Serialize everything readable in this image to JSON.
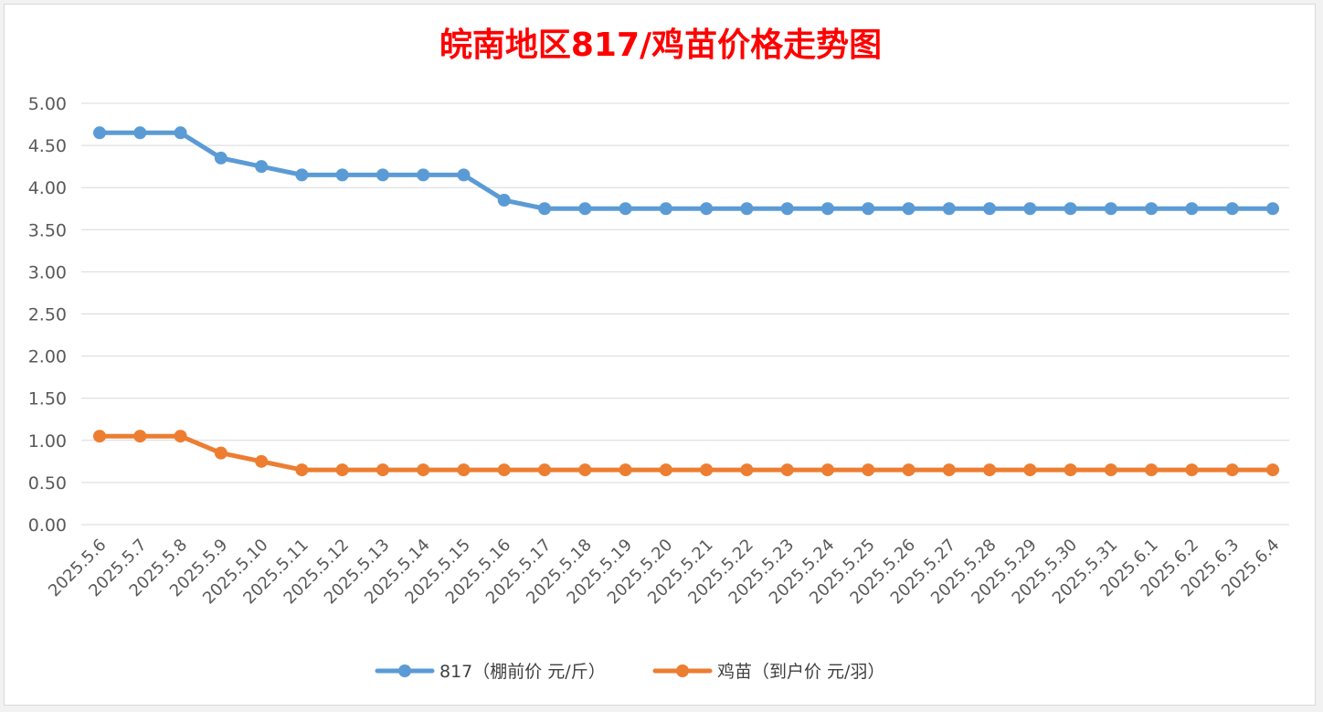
{
  "chart_data": {
    "type": "line",
    "title": "皖南地区817/鸡苗价格走势图",
    "title_color": "#ff0000",
    "xlabel": "",
    "ylabel": "",
    "ylim": [
      0,
      5
    ],
    "y_ticks": [
      "0.00",
      "0.50",
      "1.00",
      "1.50",
      "2.00",
      "2.50",
      "3.00",
      "3.50",
      "4.00",
      "4.50",
      "5.00"
    ],
    "grid": true,
    "legend_position": "bottom",
    "categories": [
      "2025.5.6",
      "2025.5.7",
      "2025.5.8",
      "2025.5.9",
      "2025.5.10",
      "2025.5.11",
      "2025.5.12",
      "2025.5.13",
      "2025.5.14",
      "2025.5.15",
      "2025.5.16",
      "2025.5.17",
      "2025.5.18",
      "2025.5.19",
      "2025.5.20",
      "2025.5.21",
      "2025.5.22",
      "2025.5.23",
      "2025.5.24",
      "2025.5.25",
      "2025.5.26",
      "2025.5.27",
      "2025.5.28",
      "2025.5.29",
      "2025.5.30",
      "2025.5.31",
      "2025.6.1",
      "2025.6.2",
      "2025.6.3",
      "2025.6.4"
    ],
    "series": [
      {
        "name": "817（棚前价 元/斤）",
        "color": "#5b9bd5",
        "values": [
          4.65,
          4.65,
          4.65,
          4.35,
          4.25,
          4.15,
          4.15,
          4.15,
          4.15,
          4.15,
          3.85,
          3.75,
          3.75,
          3.75,
          3.75,
          3.75,
          3.75,
          3.75,
          3.75,
          3.75,
          3.75,
          3.75,
          3.75,
          3.75,
          3.75,
          3.75,
          3.75,
          3.75,
          3.75,
          3.75
        ]
      },
      {
        "name": "鸡苗（到户价 元/羽）",
        "color": "#ed7d31",
        "values": [
          1.05,
          1.05,
          1.05,
          0.85,
          0.75,
          0.65,
          0.65,
          0.65,
          0.65,
          0.65,
          0.65,
          0.65,
          0.65,
          0.65,
          0.65,
          0.65,
          0.65,
          0.65,
          0.65,
          0.65,
          0.65,
          0.65,
          0.65,
          0.65,
          0.65,
          0.65,
          0.65,
          0.65,
          0.65,
          0.65
        ]
      }
    ]
  }
}
